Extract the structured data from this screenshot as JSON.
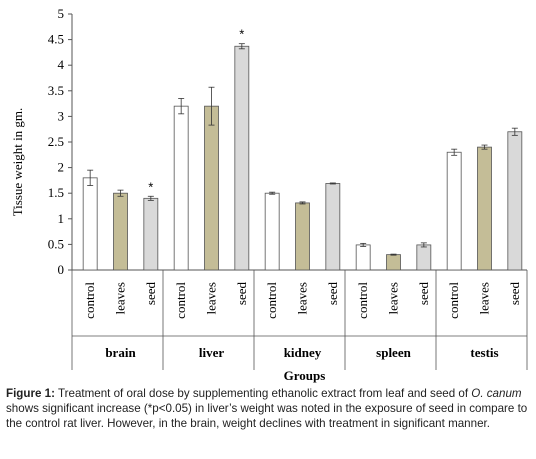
{
  "chart_data": {
    "type": "bar",
    "ylabel": "Tissue weight in gm.",
    "xlabel": "Groups",
    "ylim": [
      0,
      5
    ],
    "yticks": [
      "0",
      "0.5",
      "1",
      "1.5",
      "2",
      "2.5",
      "3",
      "3.5",
      "4",
      "4.5",
      "5"
    ],
    "grid": false,
    "groups": [
      {
        "name": "brain",
        "bars": [
          {
            "category": "control",
            "value": 1.8,
            "error": 0.15,
            "color": "#ffffff",
            "star": ""
          },
          {
            "category": "leaves",
            "value": 1.5,
            "error": 0.06,
            "color": "#c4bd97",
            "star": ""
          },
          {
            "category": "seed",
            "value": 1.4,
            "error": 0.04,
            "color": "#d9d9d9",
            "star": "*"
          }
        ]
      },
      {
        "name": "liver",
        "bars": [
          {
            "category": "control",
            "value": 3.2,
            "error": 0.15,
            "color": "#ffffff",
            "star": ""
          },
          {
            "category": "leaves",
            "value": 3.2,
            "error": 0.37,
            "color": "#c4bd97",
            "star": ""
          },
          {
            "category": "seed",
            "value": 4.37,
            "error": 0.05,
            "color": "#d9d9d9",
            "star": "*"
          }
        ]
      },
      {
        "name": "kidney",
        "bars": [
          {
            "category": "control",
            "value": 1.5,
            "error": 0.02,
            "color": "#ffffff",
            "star": ""
          },
          {
            "category": "leaves",
            "value": 1.31,
            "error": 0.02,
            "color": "#c4bd97",
            "star": ""
          },
          {
            "category": "seed",
            "value": 1.69,
            "error": 0.01,
            "color": "#d9d9d9",
            "star": ""
          }
        ]
      },
      {
        "name": "spleen",
        "bars": [
          {
            "category": "control",
            "value": 0.49,
            "error": 0.03,
            "color": "#ffffff",
            "star": ""
          },
          {
            "category": "leaves",
            "value": 0.3,
            "error": 0.01,
            "color": "#c4bd97",
            "star": ""
          },
          {
            "category": "seed",
            "value": 0.49,
            "error": 0.04,
            "color": "#d9d9d9",
            "star": ""
          }
        ]
      },
      {
        "name": "testis",
        "bars": [
          {
            "category": "control",
            "value": 2.3,
            "error": 0.06,
            "color": "#ffffff",
            "star": ""
          },
          {
            "category": "leaves",
            "value": 2.4,
            "error": 0.04,
            "color": "#c4bd97",
            "star": ""
          },
          {
            "category": "seed",
            "value": 2.7,
            "error": 0.07,
            "color": "#d9d9d9",
            "star": ""
          }
        ]
      }
    ]
  },
  "caption": {
    "label": "Figure 1:",
    "part1": " Treatment of oral dose by supplementing ethanolic extract from leaf and seed of ",
    "species": "O. canum",
    "part2": " shows significant increase (*p<0.05) in liver’s weight was noted in the exposure of seed in compare to the control rat liver. However, in the brain, weight declines with treatment in significant manner."
  }
}
